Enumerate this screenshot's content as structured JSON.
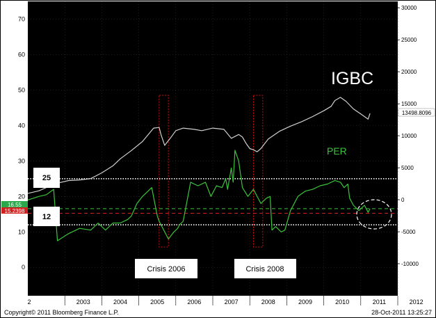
{
  "chart_data": {
    "type": "line",
    "title": "",
    "xlabel": "",
    "ylabel": "",
    "x_ticks": [
      "2",
      "2003",
      "2004",
      "2005",
      "2006",
      "2007",
      "2008",
      "2009",
      "2010",
      "2011",
      "2012"
    ],
    "y_left_ticks": [
      0,
      10,
      20,
      30,
      40,
      50,
      60,
      70
    ],
    "y_right_ticks": [
      30000,
      25000,
      20000,
      15000,
      10000,
      5000,
      0,
      -5000,
      -10000
    ],
    "ylim_left": [
      -8,
      75
    ],
    "ylim_right": [
      -15000,
      31000
    ],
    "grid": true,
    "series": [
      {
        "name": "IGBC",
        "axis": "right",
        "color": "#d0d0d0",
        "x": [
          2002.5,
          2002.8,
          2003.0,
          2003.3,
          2003.6,
          2003.9,
          2004.2,
          2004.5,
          2004.8,
          2005.0,
          2005.3,
          2005.6,
          2005.8,
          2005.9,
          2006.05,
          2006.1,
          2006.2,
          2006.35,
          2006.5,
          2006.7,
          2007.0,
          2007.2,
          2007.5,
          2007.8,
          2008.0,
          2008.2,
          2008.3,
          2008.4,
          2008.5,
          2008.6,
          2008.7,
          2008.8,
          2009.0,
          2009.3,
          2009.6,
          2009.9,
          2010.2,
          2010.5,
          2010.7,
          2010.8,
          2010.95,
          2011.1,
          2011.3,
          2011.5,
          2011.7,
          2011.75
        ],
        "y": [
          1000,
          1400,
          1900,
          2600,
          3000,
          3100,
          3300,
          4200,
          5300,
          6400,
          7700,
          9100,
          10500,
          11200,
          11300,
          10200,
          8500,
          9600,
          10800,
          11200,
          11000,
          10800,
          11200,
          11000,
          9600,
          10200,
          9800,
          8800,
          8000,
          7800,
          7500,
          8000,
          9500,
          10700,
          11500,
          12200,
          13000,
          13900,
          14600,
          15500,
          16000,
          15400,
          14200,
          13400,
          12600,
          13498.8096
        ]
      },
      {
        "name": "PER",
        "axis": "left",
        "color": "#3cc43c",
        "x": [
          2002.5,
          2002.8,
          2003.0,
          2003.2,
          2003.3,
          2003.6,
          2003.9,
          2004.2,
          2004.4,
          2004.6,
          2004.8,
          2005.0,
          2005.2,
          2005.3,
          2005.45,
          2005.6,
          2005.75,
          2005.85,
          2006.0,
          2006.05,
          2006.15,
          2006.3,
          2006.45,
          2006.55,
          2006.6,
          2006.7,
          2006.9,
          2007.1,
          2007.3,
          2007.45,
          2007.6,
          2007.75,
          2007.85,
          2007.9,
          2008.0,
          2008.05,
          2008.1,
          2008.2,
          2008.3,
          2008.45,
          2008.6,
          2008.8,
          2008.95,
          2009.05,
          2009.1,
          2009.2,
          2009.35,
          2009.45,
          2009.6,
          2009.8,
          2010.0,
          2010.2,
          2010.4,
          2010.6,
          2010.8,
          2010.95,
          2011.05,
          2011.15,
          2011.2,
          2011.3,
          2011.45,
          2011.6,
          2011.7,
          2011.75
        ],
        "y": [
          19,
          20,
          20.5,
          22,
          7.5,
          9.5,
          11,
          10.5,
          12.5,
          10.5,
          12.5,
          12.5,
          13.5,
          14.5,
          18,
          20,
          21.5,
          22.5,
          14.5,
          13,
          11,
          8,
          10,
          11,
          12,
          13,
          24,
          23,
          24,
          20,
          23,
          22.5,
          25,
          22,
          28,
          24,
          33,
          30,
          22.5,
          20,
          22,
          18,
          19.5,
          20,
          10.5,
          11.5,
          10,
          10.5,
          16,
          20,
          21.5,
          22,
          23,
          23.5,
          24.5,
          24,
          22.5,
          23.5,
          19.5,
          17.5,
          16,
          17.5,
          15.5,
          16.55
        ]
      }
    ],
    "reference_lines": [
      {
        "label": "25",
        "value": 25,
        "axis": "left",
        "style": "white-dotted"
      },
      {
        "label": "12",
        "value": 12,
        "axis": "left",
        "style": "white-dotted"
      },
      {
        "label": "16.55",
        "value": 16.55,
        "axis": "left",
        "style": "green-dashed"
      },
      {
        "label": "15.2398",
        "value": 15.2398,
        "axis": "left",
        "style": "red-dashed"
      }
    ],
    "crisis_periods": [
      {
        "label": "Crisis 2006",
        "x_start": 2006.05,
        "x_end": 2006.3
      },
      {
        "label": "Crisis 2008",
        "x_start": 2008.6,
        "x_end": 2008.85
      }
    ],
    "annotations": {
      "igbc_label": "IGBC",
      "per_label": "PER",
      "igbc_last_value": "13498.8096",
      "per_last_value": "16.55",
      "red_value": "15.2398",
      "label_25": "25",
      "label_12": "12",
      "crisis_2006": "Crisis 2006",
      "crisis_2008": "Crisis 2008",
      "copyright": "Copyright© 2011 Bloomberg Finance L.P.",
      "date_stamp": "28-Oct-2011 13:25:27"
    }
  }
}
